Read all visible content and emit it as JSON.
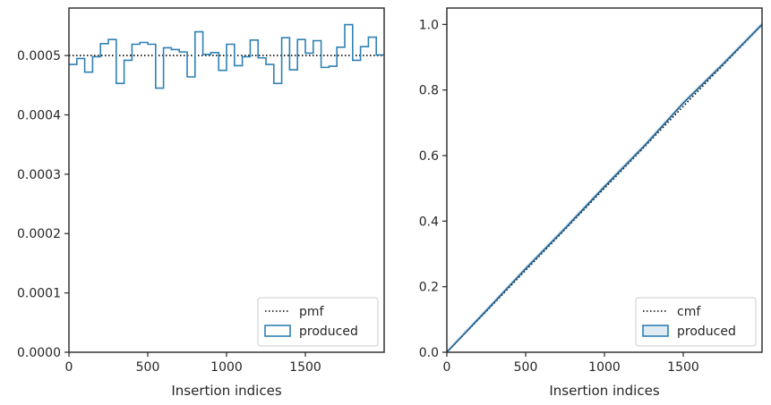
{
  "chart_data": [
    {
      "type": "line",
      "panel": "left",
      "title": "",
      "xlabel": "Insertion indices",
      "ylabel": "",
      "xlim": [
        0,
        2000
      ],
      "ylim": [
        0,
        0.00058
      ],
      "xticks": [
        0,
        500,
        1000,
        1500
      ],
      "xtick_labels": [
        "0",
        "500",
        "1000",
        "1500"
      ],
      "yticks": [
        0,
        0.0001,
        0.0002,
        0.0003,
        0.0004,
        0.0005
      ],
      "ytick_labels": [
        "0.0000",
        "0.0001",
        "0.0002",
        "0.0003",
        "0.0004",
        "0.0005"
      ],
      "grid": false,
      "legend_position": "lower-right",
      "series": [
        {
          "name": "pmf",
          "style": "dotted",
          "color": "#000000",
          "x": [
            0,
            2000
          ],
          "y": [
            0.0005,
            0.0005
          ]
        },
        {
          "name": "produced",
          "style": "step-histogram",
          "color": "#2f80b4",
          "bin_edges": [
            0,
            50,
            100,
            150,
            200,
            250,
            300,
            350,
            400,
            450,
            500,
            550,
            600,
            650,
            700,
            750,
            800,
            850,
            900,
            950,
            1000,
            1050,
            1100,
            1150,
            1200,
            1250,
            1300,
            1350,
            1400,
            1450,
            1500,
            1550,
            1600,
            1650,
            1700,
            1750,
            1800,
            1850,
            1900,
            1950,
            2000
          ],
          "values": [
            0.000485,
            0.000495,
            0.000472,
            0.000498,
            0.00052,
            0.000527,
            0.000453,
            0.000492,
            0.000519,
            0.000522,
            0.000519,
            0.000445,
            0.000513,
            0.00051,
            0.000506,
            0.000464,
            0.00054,
            0.000502,
            0.000505,
            0.000475,
            0.000519,
            0.000483,
            0.000498,
            0.000526,
            0.000496,
            0.000485,
            0.000453,
            0.00053,
            0.000476,
            0.000527,
            0.000504,
            0.000525,
            0.00048,
            0.000482,
            0.000514,
            0.000552,
            0.000492,
            0.000515,
            0.000531,
            0.000501
          ]
        }
      ]
    },
    {
      "type": "line",
      "panel": "right",
      "title": "",
      "xlabel": "Insertion indices",
      "ylabel": "",
      "xlim": [
        0,
        2000
      ],
      "ylim": [
        0,
        1.05
      ],
      "xticks": [
        0,
        500,
        1000,
        1500
      ],
      "xtick_labels": [
        "0",
        "500",
        "1000",
        "1500"
      ],
      "yticks": [
        0,
        0.2,
        0.4,
        0.6,
        0.8,
        1.0
      ],
      "ytick_labels": [
        "0.0",
        "0.2",
        "0.4",
        "0.6",
        "0.8",
        "1.0"
      ],
      "grid": false,
      "legend_position": "lower-right",
      "series": [
        {
          "name": "cmf",
          "style": "dotted",
          "color": "#000000",
          "x": [
            0,
            2000
          ],
          "y": [
            0,
            1.0
          ]
        },
        {
          "name": "produced",
          "style": "line-with-band",
          "color": "#2f80b4",
          "x": [
            0,
            250,
            500,
            750,
            1000,
            1250,
            1500,
            1750,
            2000
          ],
          "y": [
            0,
            0.127,
            0.255,
            0.378,
            0.505,
            0.628,
            0.76,
            0.878,
            1.0
          ]
        }
      ]
    }
  ]
}
